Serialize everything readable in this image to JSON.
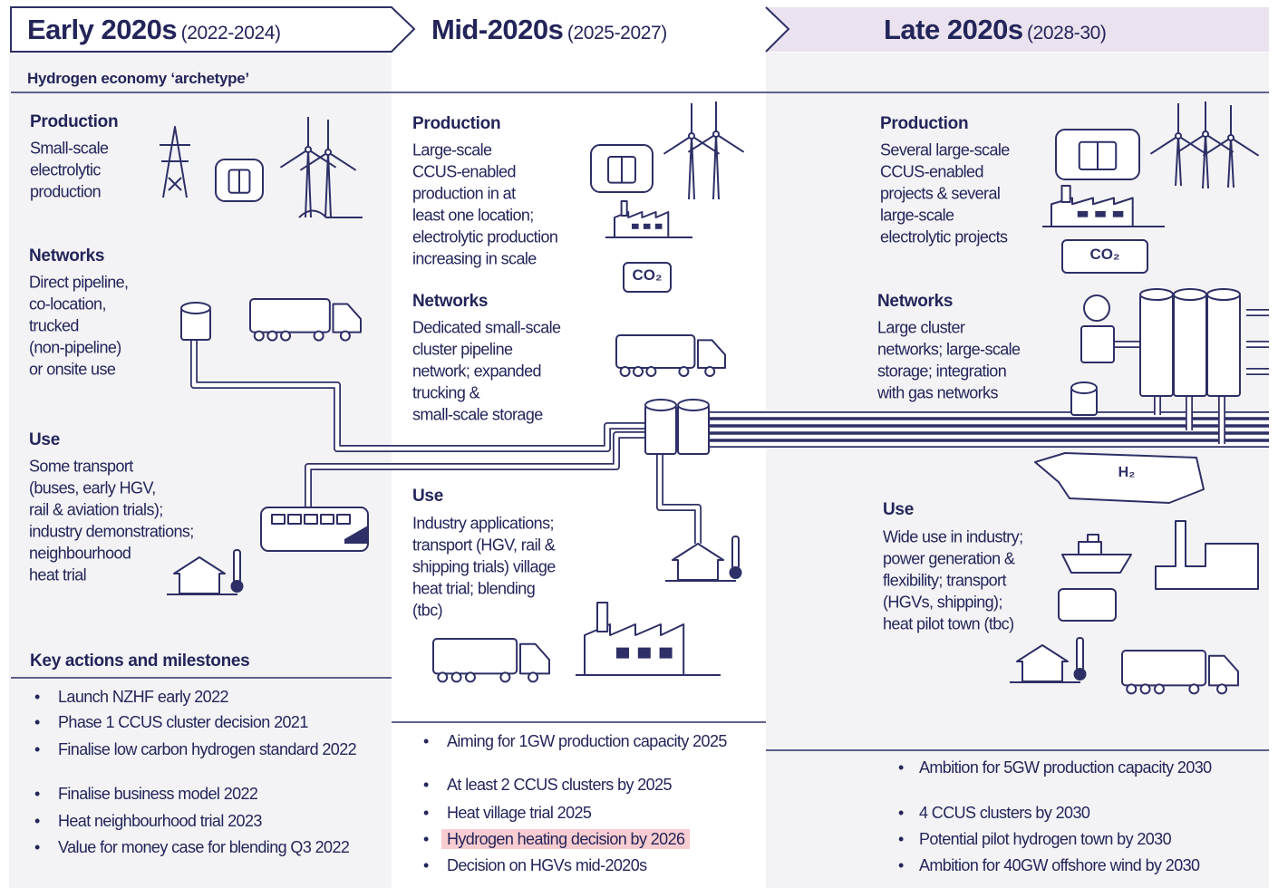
{
  "header": {
    "stages": [
      {
        "title": "Early 2020s",
        "period": "(2022-2024)"
      },
      {
        "title": "Mid-2020s",
        "period": "(2025-2027)"
      },
      {
        "title": "Late 2020s",
        "period": "(2028-30)"
      }
    ]
  },
  "archetype_label": "Hydrogen economy ‘archetype’",
  "key_actions_heading": "Key actions and milestones",
  "carbon_label": "CO₂",
  "storage_label": "H₂",
  "columns": [
    {
      "sections": [
        {
          "heading": "Production",
          "lines": [
            "Small-scale",
            "electrolytic",
            "production"
          ]
        },
        {
          "heading": "Networks",
          "lines": [
            "Direct pipeline,",
            "co-location,",
            "trucked",
            "(non-pipeline)",
            "or onsite use"
          ]
        },
        {
          "heading": "Use",
          "lines": [
            "Some transport",
            "(buses, early HGV,",
            "rail & aviation trials);",
            "industry demonstrations;",
            "neighbourhood",
            "heat trial"
          ]
        }
      ],
      "milestones": [
        "Launch NZHF early 2022",
        "Phase 1 CCUS cluster decision 2021",
        "Finalise low carbon hydrogen standard 2022",
        "Finalise business model 2022",
        "Heat neighbourhood trial 2023",
        "Value for money case for blending Q3 2022"
      ]
    },
    {
      "sections": [
        {
          "heading": "Production",
          "lines": [
            "Large-scale",
            "CCUS-enabled",
            "production in at",
            "least one location;",
            "electrolytic production",
            "increasing in scale"
          ]
        },
        {
          "heading": "Networks",
          "lines": [
            "Dedicated small-scale",
            "cluster pipeline",
            "network; expanded",
            "trucking &",
            "small-scale storage"
          ]
        },
        {
          "heading": "Use",
          "lines": [
            "Industry applications;",
            "transport (HGV, rail &",
            "shipping trials) village",
            "heat trial; blending",
            "(tbc)"
          ]
        }
      ],
      "milestones": [
        "Aiming for 1GW production capacity 2025",
        "At least 2 CCUS clusters by 2025",
        "Heat village trial 2025",
        "Hydrogen heating decision by 2026",
        "Decision on HGVs mid-2020s"
      ],
      "highlight": 3
    },
    {
      "sections": [
        {
          "heading": "Production",
          "lines": [
            "Several large-scale",
            "CCUS-enabled",
            "projects & several",
            "large-scale",
            "electrolytic projects"
          ]
        },
        {
          "heading": "Networks",
          "lines": [
            "Large cluster",
            "networks; large-scale",
            "storage; integration",
            "with gas networks"
          ]
        },
        {
          "heading": "Use",
          "lines": [
            "Wide use in industry;",
            "power generation &",
            "flexibility; transport",
            "(HGVs, shipping);",
            "heat pilot town (tbc)"
          ]
        }
      ],
      "milestones": [
        "Ambition for 5GW production capacity 2030",
        "4 CCUS clusters by 2030",
        "Potential pilot hydrogen town by 2030",
        "Ambition for 40GW offshore wind by 2030"
      ]
    }
  ]
}
